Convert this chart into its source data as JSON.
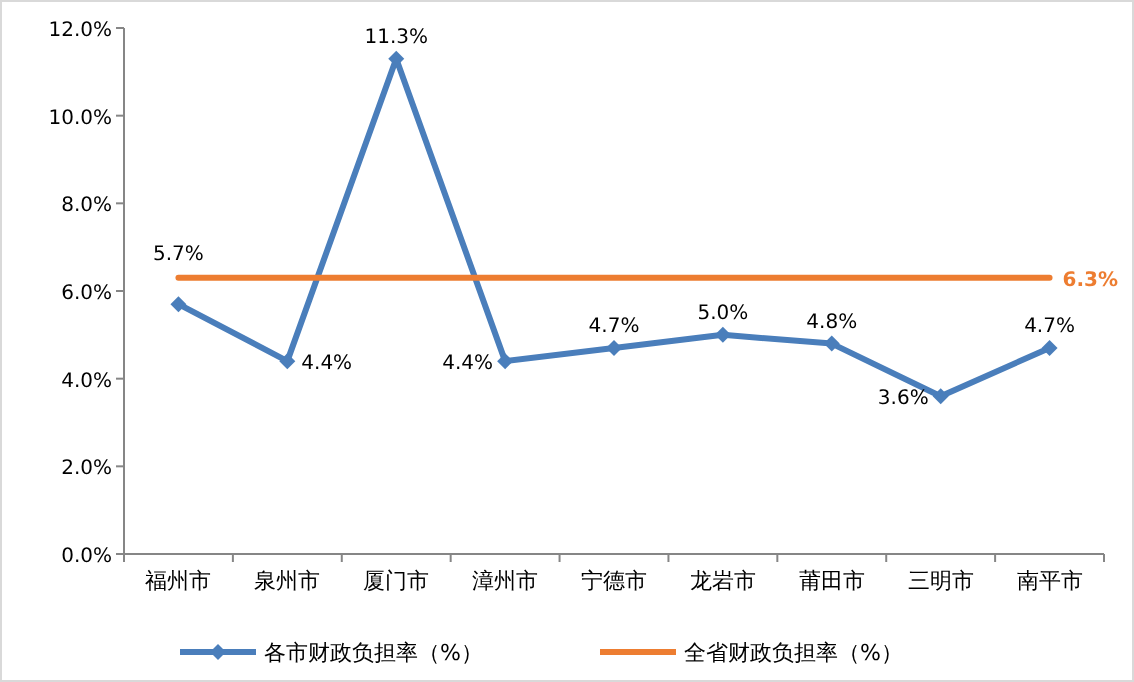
{
  "chart_data": {
    "type": "line",
    "categories": [
      "福州市",
      "泉州市",
      "厦门市",
      "漳州市",
      "宁德市",
      "龙岩市",
      "莆田市",
      "三明市",
      "南平市"
    ],
    "series": [
      {
        "name": "各市财政负担率（%）",
        "color": "#4a7ebb",
        "marker": "diamond",
        "values": [
          5.7,
          4.4,
          11.3,
          4.4,
          4.7,
          5.0,
          4.8,
          3.6,
          4.7
        ],
        "value_labels": [
          "5.7%",
          "4.4%",
          "11.3%",
          "4.4%",
          "4.7%",
          "5.0%",
          "4.8%",
          "3.6%",
          "4.7%"
        ]
      },
      {
        "name": "全省财政负担率（%）",
        "color": "#ed7d31",
        "marker": "none",
        "values": [
          6.3,
          6.3,
          6.3,
          6.3,
          6.3,
          6.3,
          6.3,
          6.3,
          6.3
        ],
        "value_labels": [
          null,
          null,
          null,
          null,
          null,
          null,
          null,
          null,
          "6.3%"
        ]
      }
    ],
    "ylim": [
      0,
      12
    ],
    "yticks": [
      {
        "value": 0,
        "label": "0.0%"
      },
      {
        "value": 2,
        "label": "2.0%"
      },
      {
        "value": 4,
        "label": "4.0%"
      },
      {
        "value": 6,
        "label": "6.0%"
      },
      {
        "value": 8,
        "label": "8.0%"
      },
      {
        "value": 10,
        "label": "10.0%"
      },
      {
        "value": 12,
        "label": "12.0%"
      }
    ],
    "grid": false,
    "legend": "bottom"
  }
}
